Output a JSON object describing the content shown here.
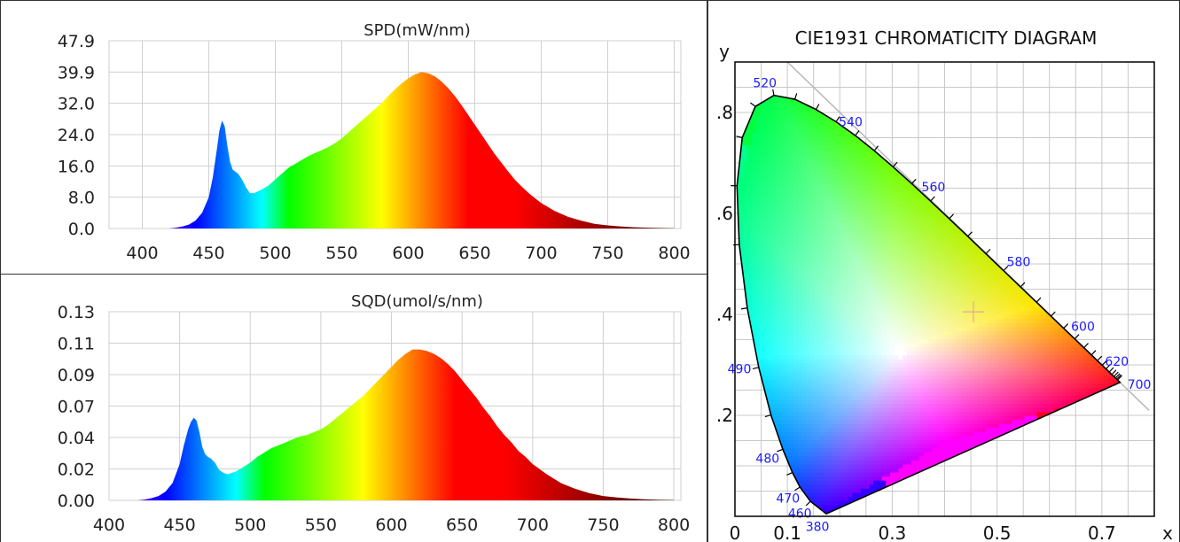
{
  "chart_data": [
    {
      "type": "area",
      "title": "SPD(mW/nm)",
      "xlabel": "",
      "ylabel": "",
      "xlim": [
        375,
        805
      ],
      "ylim": [
        0,
        47.9
      ],
      "x_ticks": [
        400,
        450,
        500,
        550,
        600,
        650,
        700,
        750,
        800
      ],
      "y_ticks": [
        "0.0",
        "8.0",
        "16.0",
        "24.0",
        "32.0",
        "39.9",
        "47.9"
      ],
      "grid": true,
      "fill": "spectral-rainbow",
      "series": [
        {
          "x": [
            420,
            425,
            430,
            435,
            440,
            445,
            450,
            453,
            456,
            458,
            460,
            462,
            464,
            466,
            468,
            470,
            472,
            475,
            478,
            481,
            484,
            487,
            490,
            495,
            500,
            505,
            510,
            515,
            520,
            525,
            530,
            535,
            540,
            545,
            550,
            555,
            560,
            565,
            570,
            575,
            580,
            585,
            590,
            595,
            600,
            605,
            610,
            615,
            620,
            625,
            630,
            635,
            640,
            645,
            650,
            655,
            660,
            665,
            670,
            675,
            680,
            685,
            690,
            695,
            700,
            710,
            720,
            730,
            740,
            750,
            760,
            770,
            780,
            790,
            800
          ],
          "values": [
            0,
            0.2,
            0.5,
            1.0,
            2.0,
            4.0,
            8.0,
            13.0,
            20.0,
            25.0,
            27.5,
            26.0,
            21.0,
            17.0,
            15.0,
            14.5,
            14.0,
            12.5,
            10.5,
            9.0,
            9.0,
            9.5,
            10.0,
            11.0,
            12.5,
            14.0,
            15.5,
            16.5,
            17.5,
            18.5,
            19.3,
            20.0,
            20.8,
            21.8,
            23.0,
            24.5,
            26.0,
            27.5,
            29.0,
            30.5,
            32.0,
            33.8,
            35.5,
            37.0,
            38.3,
            39.3,
            39.9,
            39.6,
            38.8,
            37.5,
            35.8,
            33.8,
            31.5,
            29.0,
            26.5,
            24.0,
            21.5,
            19.0,
            16.8,
            14.6,
            12.5,
            10.8,
            9.2,
            7.8,
            6.5,
            4.5,
            3.0,
            2.0,
            1.2,
            0.8,
            0.5,
            0.3,
            0.2,
            0.1,
            0.05
          ]
        }
      ]
    },
    {
      "type": "area",
      "title": "SQD(umol/s/nm)",
      "xlabel": "",
      "ylabel": "",
      "xlim": [
        400,
        805
      ],
      "ylim": [
        0,
        0.13
      ],
      "x_ticks": [
        400,
        450,
        500,
        550,
        600,
        650,
        700,
        750,
        800
      ],
      "y_ticks": [
        "0.00",
        "0.02",
        "0.04",
        "0.07",
        "0.09",
        "0.11",
        "0.13"
      ],
      "grid": true,
      "fill": "spectral-rainbow",
      "series": [
        {
          "x": [
            420,
            425,
            430,
            435,
            440,
            445,
            450,
            453,
            456,
            458,
            460,
            462,
            464,
            466,
            468,
            470,
            472,
            475,
            478,
            481,
            484,
            487,
            490,
            495,
            500,
            505,
            510,
            515,
            520,
            525,
            530,
            535,
            540,
            545,
            550,
            555,
            560,
            565,
            570,
            575,
            580,
            585,
            590,
            595,
            600,
            605,
            610,
            615,
            620,
            625,
            630,
            635,
            640,
            645,
            650,
            655,
            660,
            665,
            670,
            675,
            680,
            685,
            690,
            695,
            700,
            710,
            720,
            730,
            740,
            750,
            760,
            770,
            780,
            790,
            800
          ],
          "values": [
            0,
            0.0005,
            0.0015,
            0.003,
            0.006,
            0.012,
            0.025,
            0.038,
            0.049,
            0.054,
            0.057,
            0.055,
            0.047,
            0.037,
            0.032,
            0.03,
            0.029,
            0.026,
            0.021,
            0.019,
            0.018,
            0.019,
            0.02,
            0.023,
            0.026,
            0.03,
            0.033,
            0.036,
            0.038,
            0.04,
            0.042,
            0.044,
            0.045,
            0.047,
            0.049,
            0.052,
            0.056,
            0.06,
            0.064,
            0.068,
            0.072,
            0.077,
            0.082,
            0.087,
            0.092,
            0.097,
            0.101,
            0.104,
            0.104,
            0.103,
            0.101,
            0.098,
            0.094,
            0.089,
            0.083,
            0.077,
            0.071,
            0.064,
            0.058,
            0.051,
            0.045,
            0.04,
            0.034,
            0.03,
            0.025,
            0.018,
            0.012,
            0.008,
            0.005,
            0.003,
            0.002,
            0.0012,
            0.0007,
            0.0004,
            0.0002
          ]
        }
      ]
    },
    {
      "type": "scatter",
      "title": "CIE1931 CHROMATICITY DIAGRAM",
      "xlabel": "x",
      "ylabel": "y",
      "xlim": [
        0,
        0.8
      ],
      "ylim": [
        0,
        0.9
      ],
      "x_tick_labels": [
        {
          "v": 0,
          "t": "0"
        },
        {
          "v": 0.1,
          "t": "0.1"
        },
        {
          "v": 0.3,
          "t": "0.3"
        },
        {
          "v": 0.5,
          "t": "0.5"
        },
        {
          "v": 0.7,
          "t": "0.7"
        }
      ],
      "y_tick_labels": [
        {
          "v": 0.2,
          "t": ".2"
        },
        {
          "v": 0.4,
          "t": ".4"
        },
        {
          "v": 0.6,
          "t": ".6"
        },
        {
          "v": 0.8,
          "t": ".8"
        }
      ],
      "grid": true,
      "grid_step": 0.05,
      "locus_wavelength_labels": [
        {
          "nm": "460",
          "x": 0.144,
          "y": 0.0297
        },
        {
          "nm": "470",
          "x": 0.1241,
          "y": 0.0578
        },
        {
          "nm": "480",
          "x": 0.0913,
          "y": 0.1327
        },
        {
          "nm": "490",
          "x": 0.0454,
          "y": 0.295
        },
        {
          "nm": "520",
          "x": 0.0743,
          "y": 0.8338
        },
        {
          "nm": "540",
          "x": 0.2296,
          "y": 0.7543
        },
        {
          "nm": "560",
          "x": 0.3731,
          "y": 0.6245
        },
        {
          "nm": "580",
          "x": 0.5125,
          "y": 0.4866
        },
        {
          "nm": "600",
          "x": 0.627,
          "y": 0.3725
        },
        {
          "nm": "620",
          "x": 0.6915,
          "y": 0.3083
        },
        {
          "nm": "700",
          "x": 0.7347,
          "y": 0.2653
        },
        {
          "nm": "380",
          "x": 0.1741,
          "y": 0.005
        }
      ],
      "locus": [
        [
          0.1741,
          0.005
        ],
        [
          0.144,
          0.0297
        ],
        [
          0.1241,
          0.0578
        ],
        [
          0.1096,
          0.0868
        ],
        [
          0.0913,
          0.1327
        ],
        [
          0.0687,
          0.2007
        ],
        [
          0.0454,
          0.295
        ],
        [
          0.0235,
          0.4127
        ],
        [
          0.0082,
          0.5384
        ],
        [
          0.0039,
          0.6548
        ],
        [
          0.0139,
          0.7502
        ],
        [
          0.0389,
          0.812
        ],
        [
          0.0743,
          0.8338
        ],
        [
          0.1142,
          0.8262
        ],
        [
          0.1547,
          0.8059
        ],
        [
          0.1929,
          0.7816
        ],
        [
          0.2296,
          0.7543
        ],
        [
          0.2658,
          0.7243
        ],
        [
          0.3016,
          0.6923
        ],
        [
          0.3373,
          0.6589
        ],
        [
          0.3731,
          0.6245
        ],
        [
          0.4087,
          0.5896
        ],
        [
          0.4441,
          0.5547
        ],
        [
          0.4788,
          0.5202
        ],
        [
          0.5125,
          0.4866
        ],
        [
          0.5448,
          0.4544
        ],
        [
          0.5752,
          0.4242
        ],
        [
          0.6029,
          0.3965
        ],
        [
          0.627,
          0.3725
        ],
        [
          0.6482,
          0.3514
        ],
        [
          0.6658,
          0.334
        ],
        [
          0.6801,
          0.3197
        ],
        [
          0.6915,
          0.3083
        ],
        [
          0.7006,
          0.2993
        ],
        [
          0.7079,
          0.292
        ],
        [
          0.714,
          0.2859
        ],
        [
          0.719,
          0.2809
        ],
        [
          0.723,
          0.277
        ],
        [
          0.726,
          0.274
        ],
        [
          0.7283,
          0.2717
        ],
        [
          0.73,
          0.27
        ],
        [
          0.7347,
          0.2653
        ]
      ],
      "marker": {
        "x": 0.455,
        "y": 0.405
      }
    }
  ]
}
